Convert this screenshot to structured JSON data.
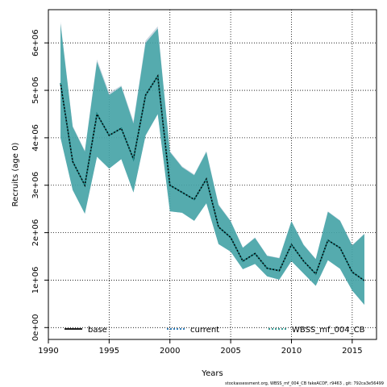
{
  "chart_data": {
    "type": "area",
    "xlabel": "Years",
    "ylabel": "Recruits (age 0)",
    "xlim": [
      1990,
      2017
    ],
    "ylim": [
      -250000,
      6700000
    ],
    "x_ticks": [
      1990,
      1995,
      2000,
      2005,
      2010,
      2015
    ],
    "x_tick_labels": [
      "1990",
      "1995",
      "2000",
      "2005",
      "2010",
      "2015"
    ],
    "y_ticks": [
      0,
      1000000,
      2000000,
      3000000,
      4000000,
      5000000,
      6000000
    ],
    "y_tick_labels": [
      "0e+00",
      "1e+06",
      "2e+06",
      "3e+06",
      "4e+06",
      "5e+06",
      "6e+06"
    ],
    "grid": true,
    "x": [
      1991,
      1992,
      1993,
      1994,
      1995,
      1996,
      1997,
      1998,
      1999,
      2000,
      2001,
      2002,
      2003,
      2004,
      2005,
      2006,
      2007,
      2008,
      2009,
      2010,
      2011,
      2012,
      2013,
      2014,
      2015,
      2016
    ],
    "series": [
      {
        "name": "base",
        "values": [
          5150000,
          3500000,
          3000000,
          4500000,
          4050000,
          4200000,
          3550000,
          4900000,
          5300000,
          3000000,
          2850000,
          2700000,
          3130000,
          2120000,
          1900000,
          1400000,
          1560000,
          1250000,
          1200000,
          1750000,
          1400000,
          1130000,
          1840000,
          1680000,
          1170000,
          990000
        ],
        "lower": [
          4000000,
          2900000,
          2400000,
          3600000,
          3350000,
          3550000,
          2850000,
          4050000,
          4500000,
          2450000,
          2420000,
          2250000,
          2620000,
          1760000,
          1600000,
          1230000,
          1340000,
          1080000,
          1010000,
          1400000,
          1140000,
          880000,
          1420000,
          1240000,
          780000,
          480000
        ],
        "upper": [
          6450000,
          4250000,
          3730000,
          5650000,
          4950000,
          5100000,
          4350000,
          6050000,
          6350000,
          3720000,
          3400000,
          3230000,
          3720000,
          2600000,
          2250000,
          1690000,
          1900000,
          1520000,
          1470000,
          2250000,
          1750000,
          1450000,
          2450000,
          2260000,
          1740000,
          1980000
        ]
      },
      {
        "name": "current",
        "values": [
          5150000,
          3500000,
          3000000,
          4500000,
          4050000,
          4200000,
          3550000,
          4900000,
          5300000,
          3000000,
          2850000,
          2700000,
          3130000,
          2120000,
          1900000,
          1400000,
          1560000,
          1250000,
          1200000,
          1750000,
          1400000,
          1130000,
          1840000,
          1680000,
          1170000,
          990000
        ],
        "lower": [
          4000000,
          2900000,
          2400000,
          3600000,
          3350000,
          3550000,
          2850000,
          4050000,
          4500000,
          2450000,
          2420000,
          2250000,
          2620000,
          1760000,
          1600000,
          1230000,
          1340000,
          1080000,
          1010000,
          1400000,
          1140000,
          880000,
          1420000,
          1240000,
          780000,
          480000
        ],
        "upper": [
          6400000,
          4230000,
          3710000,
          5600000,
          4900000,
          5080000,
          4300000,
          6000000,
          6300000,
          3700000,
          3380000,
          3210000,
          3700000,
          2580000,
          2240000,
          1680000,
          1890000,
          1510000,
          1460000,
          2240000,
          1740000,
          1440000,
          2440000,
          2250000,
          1730000,
          1970000
        ]
      },
      {
        "name": "WBSS_mf_004_CB",
        "values": [
          5150000,
          3500000,
          3000000,
          4500000,
          4050000,
          4200000,
          3550000,
          4900000,
          5300000,
          3000000,
          2850000,
          2700000,
          3130000,
          2120000,
          1900000,
          1400000,
          1560000,
          1250000,
          1200000,
          1750000,
          1400000,
          1130000,
          1840000,
          1680000,
          1170000,
          990000
        ],
        "lower": [
          4000000,
          2900000,
          2400000,
          3600000,
          3350000,
          3550000,
          2850000,
          4050000,
          4500000,
          2450000,
          2420000,
          2250000,
          2620000,
          1760000,
          1600000,
          1230000,
          1340000,
          1080000,
          1010000,
          1400000,
          1140000,
          880000,
          1420000,
          1240000,
          780000,
          480000
        ],
        "upper": [
          6400000,
          4230000,
          3710000,
          5600000,
          4900000,
          5080000,
          4300000,
          6000000,
          6300000,
          3700000,
          3380000,
          3210000,
          3700000,
          2580000,
          2240000,
          1680000,
          1890000,
          1510000,
          1460000,
          2240000,
          1740000,
          1440000,
          2440000,
          2250000,
          1730000,
          1970000
        ]
      }
    ],
    "legend": {
      "placement": "bottom",
      "entries": [
        {
          "label": "base",
          "color": "#000000",
          "style": "solid"
        },
        {
          "label": "current",
          "color": "#1a6fb0",
          "style": "dotted"
        },
        {
          "label": "WBSS_mf_004_CB",
          "color": "#1f8f86",
          "style": "dotted"
        }
      ]
    },
    "colors": {
      "band_base": "#9fb6c8",
      "band_current": "#6aa8cf",
      "band_model": "#2e9e98",
      "line_base": "#000000",
      "line_current": "#1a6fb0",
      "line_model": "#1f8f86",
      "grid": "#000000"
    }
  },
  "footer": "stockassessment.org, WBSS_mf_004_CB fakeACDF, r9463 , git: 792ca3e56499"
}
